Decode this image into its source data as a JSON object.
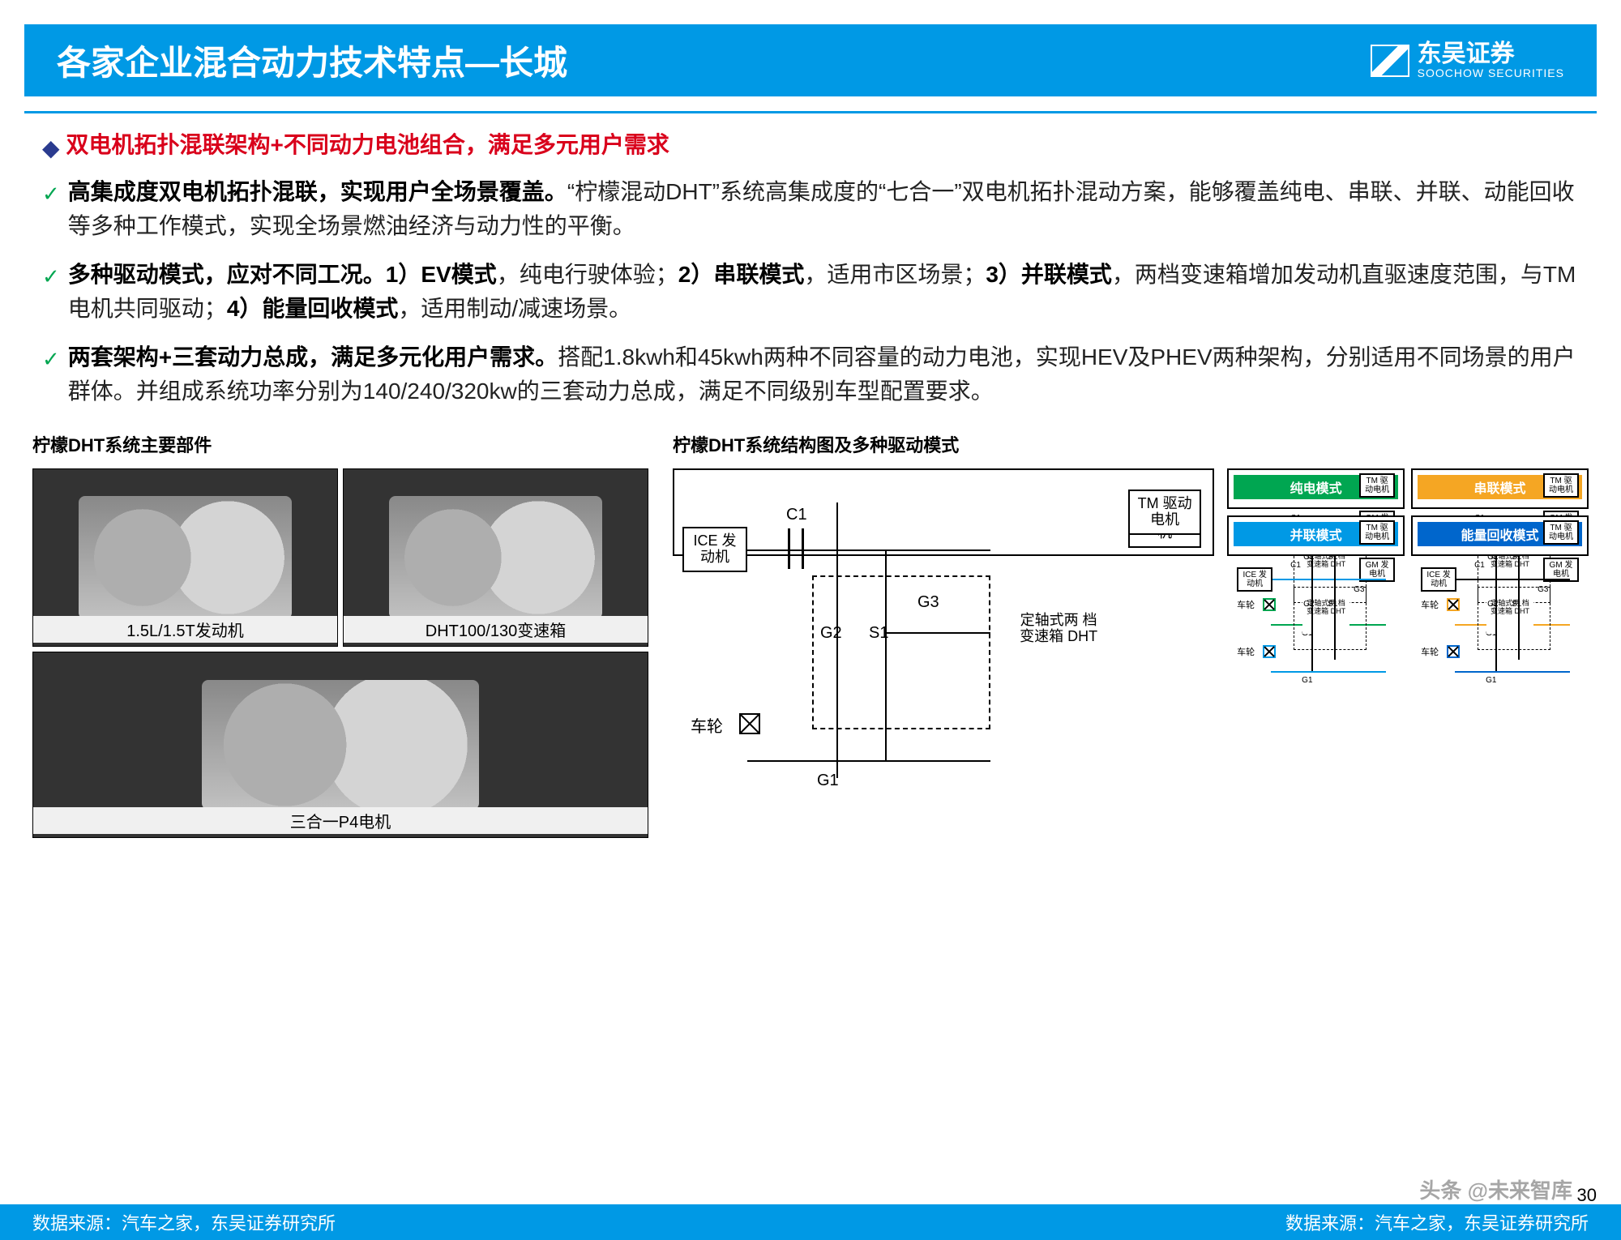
{
  "header": {
    "title": "各家企业混合动力技术特点—长城",
    "logo_text": "东吴证券",
    "logo_sub": "SOOCHOW SECURITIES"
  },
  "headline": "双电机拓扑混联架构+不同动力电池组合，满足多元用户需求",
  "bullets": [
    {
      "bold": "高集成度双电机拓扑混联，实现用户全场景覆盖。",
      "text": "“柠檬混动DHT”系统高集成度的“七合一”双电机拓扑混动方案，能够覆盖纯电、串联、并联、动能回收等多种工作模式，实现全场景燃油经济与动力性的平衡。"
    },
    {
      "bold": "多种驱动模式，应对不同工况。1）EV模式",
      "text": "，纯电行驶体验；",
      "bold2": "2）串联模式",
      "text2": "，适用市区场景；",
      "bold3": "3）并联模式",
      "text3": "，两档变速箱增加发动机直驱速度范围，与TM电机共同驱动；",
      "bold4": "4）能量回收模式",
      "text4": "，适用制动/减速场景。"
    },
    {
      "bold": "两套架构+三套动力总成，满足多元化用户需求。",
      "text": "搭配1.8kwh和45kwh两种不同容量的动力电池，实现HEV及PHEV两种架构，分别适用不同场景的用户群体。并组成系统功率分别为140/240/320kw的三套动力总成，满足不同级别车型配置要求。"
    }
  ],
  "fig_left_title": "柠檬DHT系统主要部件",
  "components": [
    {
      "caption": "1.5L/1.5T发动机"
    },
    {
      "caption": "DHT100/130变速箱"
    },
    {
      "caption": "三合一P4电机"
    }
  ],
  "fig_right_title": "柠檬DHT系统结构图及多种驱动模式",
  "schematic": {
    "ice": "ICE\n发动机",
    "gm": "GM\n发电机",
    "tm": "TM\n驱动电机",
    "dht": "定轴式两\n档变速箱\nDHT",
    "c1": "C1",
    "g1": "G1",
    "g2": "G2",
    "g3": "G3",
    "s1": "S1",
    "wheel": "车轮"
  },
  "modes": [
    {
      "name": "纯电模式",
      "color": "#00a651"
    },
    {
      "name": "串联模式",
      "color": "#f5a623"
    },
    {
      "name": "并联模式",
      "color": "#0099e5"
    },
    {
      "name": "能量回收模式",
      "color": "#0066cc"
    }
  ],
  "mini_labels": {
    "ice": "ICE\n发动机",
    "gm": "GM\n发电机",
    "tm": "TM\n驱动电机",
    "dht": "定轴式两\n档变速箱\nDHT",
    "wheel": "车轮",
    "c1": "C1",
    "g1": "G1",
    "g2": "G2",
    "g3": "G3",
    "s1": "S1"
  },
  "source_left": "数据来源：汽车之家，东吴证券研究所",
  "source_right": "数据来源：汽车之家，东吴证券研究所",
  "watermark": "头条 @未来智库",
  "page": "30"
}
